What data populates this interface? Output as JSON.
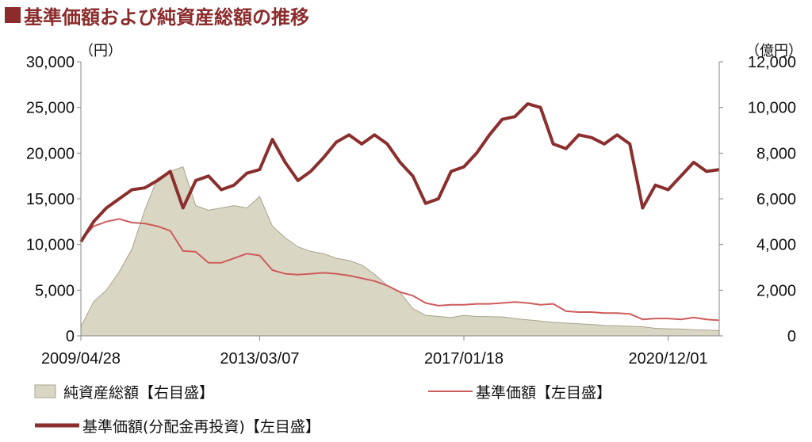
{
  "title": "■基準価額および純資産総額の推移",
  "title_text": "基準価額および純資産総額の推移",
  "colors": {
    "title": "#8b2b2b",
    "area_fill": "#d9d6c3",
    "area_stroke": "#a8a48c",
    "nav_line": "#cd5c5c",
    "nav_reinvested_line": "#8b2e2e"
  },
  "chart_data": {
    "type": "line",
    "left_axis": {
      "unit": "（円）",
      "ylim": [
        0,
        30000
      ],
      "ticks": [
        "0",
        "5,000",
        "10,000",
        "15,000",
        "20,000",
        "25,000",
        "30,000"
      ]
    },
    "right_axis": {
      "unit": "（億円）",
      "ylim": [
        0,
        12000
      ],
      "ticks": [
        "0",
        "2,000",
        "4,000",
        "6,000",
        "8,000",
        "10,000",
        "12,000"
      ]
    },
    "x_ticks": [
      "2009/04/28",
      "2013/03/07",
      "2017/01/18",
      "2020/12/01"
    ],
    "x": [
      "2009/04/28",
      "2009/10",
      "2010/04",
      "2010/07",
      "2010/10",
      "2011/01",
      "2011/04",
      "2011/07",
      "2011/08",
      "2011/11",
      "2012/03",
      "2012/06",
      "2012/09",
      "2012/12",
      "2013/03/07",
      "2013/05",
      "2013/07",
      "2013/10",
      "2014/01",
      "2014/04",
      "2014/07",
      "2014/10",
      "2015/01",
      "2015/04",
      "2015/07",
      "2015/10",
      "2016/01",
      "2016/04",
      "2016/07",
      "2016/10",
      "2017/01/18",
      "2017/04",
      "2017/07",
      "2017/10",
      "2018/01",
      "2018/04",
      "2018/07",
      "2018/10",
      "2019/01",
      "2019/04",
      "2019/07",
      "2019/10",
      "2020/01",
      "2020/03",
      "2020/06",
      "2020/09",
      "2020/12/01",
      "2021/03",
      "2021/06",
      "2021/09",
      "2021/12"
    ],
    "series": [
      {
        "name": "純資産総額【右目盛】",
        "type": "area",
        "axis": "right",
        "values": [
          400,
          1500,
          2000,
          2800,
          3800,
          5500,
          6900,
          7200,
          7400,
          5700,
          5500,
          5600,
          5700,
          5600,
          6100,
          4800,
          4300,
          3900,
          3700,
          3600,
          3400,
          3300,
          3100,
          2700,
          2200,
          1900,
          1200,
          900,
          850,
          800,
          900,
          850,
          840,
          830,
          760,
          700,
          650,
          590,
          560,
          530,
          500,
          460,
          440,
          420,
          400,
          330,
          310,
          300,
          270,
          250,
          230
        ]
      },
      {
        "name": "基準価額【左目盛】",
        "type": "line",
        "axis": "left",
        "values": [
          10500,
          12000,
          12500,
          12800,
          12400,
          12300,
          12000,
          11500,
          9300,
          9200,
          8000,
          8000,
          8500,
          9000,
          8800,
          7200,
          6800,
          6700,
          6800,
          6900,
          6800,
          6600,
          6300,
          6000,
          5500,
          4800,
          4400,
          3600,
          3300,
          3400,
          3400,
          3500,
          3500,
          3600,
          3700,
          3600,
          3400,
          3500,
          2700,
          2600,
          2600,
          2500,
          2500,
          2400,
          1800,
          1900,
          1900,
          1800,
          2000,
          1800,
          1700
        ]
      },
      {
        "name": "基準価額(分配金再投資)【左目盛】",
        "type": "line",
        "axis": "left",
        "values": [
          10300,
          12500,
          14000,
          15000,
          16000,
          16200,
          17000,
          18000,
          14000,
          17000,
          17500,
          16000,
          16500,
          17800,
          18200,
          21500,
          19000,
          17000,
          18000,
          19500,
          21200,
          22000,
          21000,
          22000,
          21000,
          19000,
          17500,
          14500,
          15000,
          18000,
          18500,
          20000,
          22000,
          23700,
          24000,
          25400,
          25000,
          21000,
          20500,
          22000,
          21700,
          21000,
          22000,
          21000,
          14000,
          16500,
          16000,
          17500,
          19000,
          18000,
          18200
        ]
      }
    ]
  },
  "legend": {
    "area": "純資産総額【右目盛】",
    "nav": "基準価額【左目盛】",
    "nav_reinvested": "基準価額(分配金再投資)【左目盛】"
  }
}
